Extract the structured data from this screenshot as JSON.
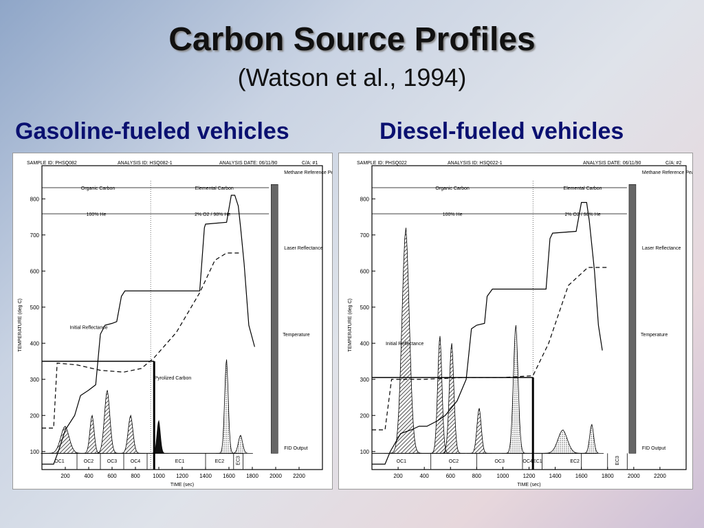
{
  "title": "Carbon Source Profiles",
  "subtitle": "(Watson et al., 1994)",
  "panels": [
    {
      "title": "Gasoline-fueled vehicles"
    },
    {
      "title": "Diesel-fueled vehicles"
    }
  ],
  "chart_data": [
    {
      "type": "line",
      "header": {
        "sample": "SAMPLE ID: PHSQ082",
        "analysis": "ANALYSIS ID: HSQ082-1",
        "date": "ANALYSIS DATE: 06/11/90",
        "ca": "C/A: #1"
      },
      "xlabel": "TIME (sec)",
      "ylabel": "TEMPERATURE (deg C)",
      "xticks": [
        200,
        400,
        600,
        800,
        1000,
        1200,
        1400,
        1600,
        1800,
        2000,
        2200
      ],
      "yticks": [
        100,
        200,
        300,
        400,
        500,
        600,
        700,
        800
      ],
      "xlim": [
        0,
        2400
      ],
      "ylim": [
        50,
        850
      ],
      "annotations": {
        "organic": "Organic Carbon",
        "elemental": "Elemental Carbon",
        "he": "100% He",
        "o2": "2% O2 / 98% He",
        "methane": "Methane Reference Peak",
        "laser": "Laser Reflectance",
        "temperature": "Temperature",
        "initial": "Initial Reflectance",
        "pyrolized": "Pyrolized Carbon",
        "fid": "FID Output"
      },
      "fractions": [
        "OC1",
        "OC2",
        "OC3",
        "OC4",
        "EC1",
        "EC2",
        "EC3"
      ],
      "oc_ec_split": 960,
      "o2_start": 930,
      "temperature": [
        [
          0,
          65
        ],
        [
          100,
          65
        ],
        [
          140,
          100
        ],
        [
          200,
          160
        ],
        [
          280,
          200
        ],
        [
          330,
          255
        ],
        [
          400,
          270
        ],
        [
          460,
          285
        ],
        [
          500,
          425
        ],
        [
          540,
          450
        ],
        [
          600,
          455
        ],
        [
          640,
          460
        ],
        [
          680,
          530
        ],
        [
          710,
          545
        ],
        [
          800,
          545
        ],
        [
          1000,
          545
        ],
        [
          1200,
          545
        ],
        [
          1350,
          545
        ],
        [
          1390,
          720
        ],
        [
          1400,
          730
        ],
        [
          1580,
          735
        ],
        [
          1620,
          810
        ],
        [
          1650,
          810
        ],
        [
          1680,
          780
        ],
        [
          1700,
          720
        ],
        [
          1730,
          620
        ],
        [
          1770,
          450
        ],
        [
          1820,
          390
        ]
      ],
      "laser": [
        [
          0,
          165
        ],
        [
          100,
          165
        ],
        [
          130,
          345
        ],
        [
          300,
          340
        ],
        [
          500,
          325
        ],
        [
          700,
          320
        ],
        [
          850,
          330
        ],
        [
          960,
          360
        ],
        [
          1150,
          430
        ],
        [
          1350,
          540
        ],
        [
          1480,
          630
        ],
        [
          1580,
          650
        ],
        [
          1700,
          650
        ]
      ],
      "fid_peaks": [
        [
          200,
          170,
          70
        ],
        [
          430,
          200,
          35
        ],
        [
          560,
          270,
          45
        ],
        [
          760,
          200,
          40
        ],
        [
          1000,
          185,
          28
        ],
        [
          1580,
          355,
          30
        ],
        [
          1700,
          145,
          35
        ]
      ],
      "initial_reflectance": 350,
      "methane_peak": 1990
    },
    {
      "type": "line",
      "header": {
        "sample": "SAMPLE ID: PHSQ022",
        "analysis": "ANALYSIS ID: HSQ022-1",
        "date": "ANALYSIS DATE: 06/11/90",
        "ca": "C/A: #2"
      },
      "xlabel": "TIME (sec)",
      "ylabel": "TEMPERATURE (deg C)",
      "xticks": [
        200,
        400,
        600,
        800,
        1000,
        1200,
        1400,
        1600,
        1800,
        2000,
        2200
      ],
      "yticks": [
        100,
        200,
        300,
        400,
        500,
        600,
        700,
        800
      ],
      "xlim": [
        0,
        2400
      ],
      "ylim": [
        50,
        850
      ],
      "annotations": {
        "organic": "Organic Carbon",
        "elemental": "Elemental Carbon",
        "he": "100% He",
        "o2": "2% O2 / 98% He",
        "methane": "Methane Reference Peak",
        "laser": "Laser Reflectance",
        "temperature": "Temperature",
        "initial": "Initial Reflectance",
        "fid": "FID Output"
      },
      "fractions": [
        "OC1",
        "OC2",
        "OC3",
        "OC4",
        "EC1",
        "EC2",
        "EC3"
      ],
      "oc_ec_split": 1230,
      "o2_start": 1230,
      "temperature": [
        [
          0,
          65
        ],
        [
          100,
          65
        ],
        [
          140,
          100
        ],
        [
          220,
          150
        ],
        [
          300,
          160
        ],
        [
          360,
          170
        ],
        [
          420,
          170
        ],
        [
          500,
          185
        ],
        [
          560,
          200
        ],
        [
          650,
          240
        ],
        [
          720,
          300
        ],
        [
          760,
          440
        ],
        [
          800,
          450
        ],
        [
          860,
          455
        ],
        [
          880,
          530
        ],
        [
          920,
          550
        ],
        [
          1100,
          550
        ],
        [
          1230,
          550
        ],
        [
          1330,
          550
        ],
        [
          1360,
          690
        ],
        [
          1380,
          705
        ],
        [
          1560,
          710
        ],
        [
          1600,
          790
        ],
        [
          1640,
          790
        ],
        [
          1660,
          740
        ],
        [
          1700,
          600
        ],
        [
          1730,
          450
        ],
        [
          1760,
          380
        ]
      ],
      "laser": [
        [
          0,
          160
        ],
        [
          100,
          160
        ],
        [
          150,
          300
        ],
        [
          400,
          300
        ],
        [
          700,
          305
        ],
        [
          1000,
          305
        ],
        [
          1230,
          310
        ],
        [
          1350,
          400
        ],
        [
          1500,
          560
        ],
        [
          1650,
          610
        ],
        [
          1800,
          610
        ]
      ],
      "fid_peaks": [
        [
          260,
          720,
          55
        ],
        [
          520,
          420,
          32
        ],
        [
          610,
          400,
          34
        ],
        [
          820,
          220,
          32
        ],
        [
          1100,
          450,
          35
        ],
        [
          1460,
          160,
          70
        ],
        [
          1680,
          175,
          30
        ]
      ],
      "initial_reflectance": 305,
      "methane_peak": 1990
    }
  ]
}
